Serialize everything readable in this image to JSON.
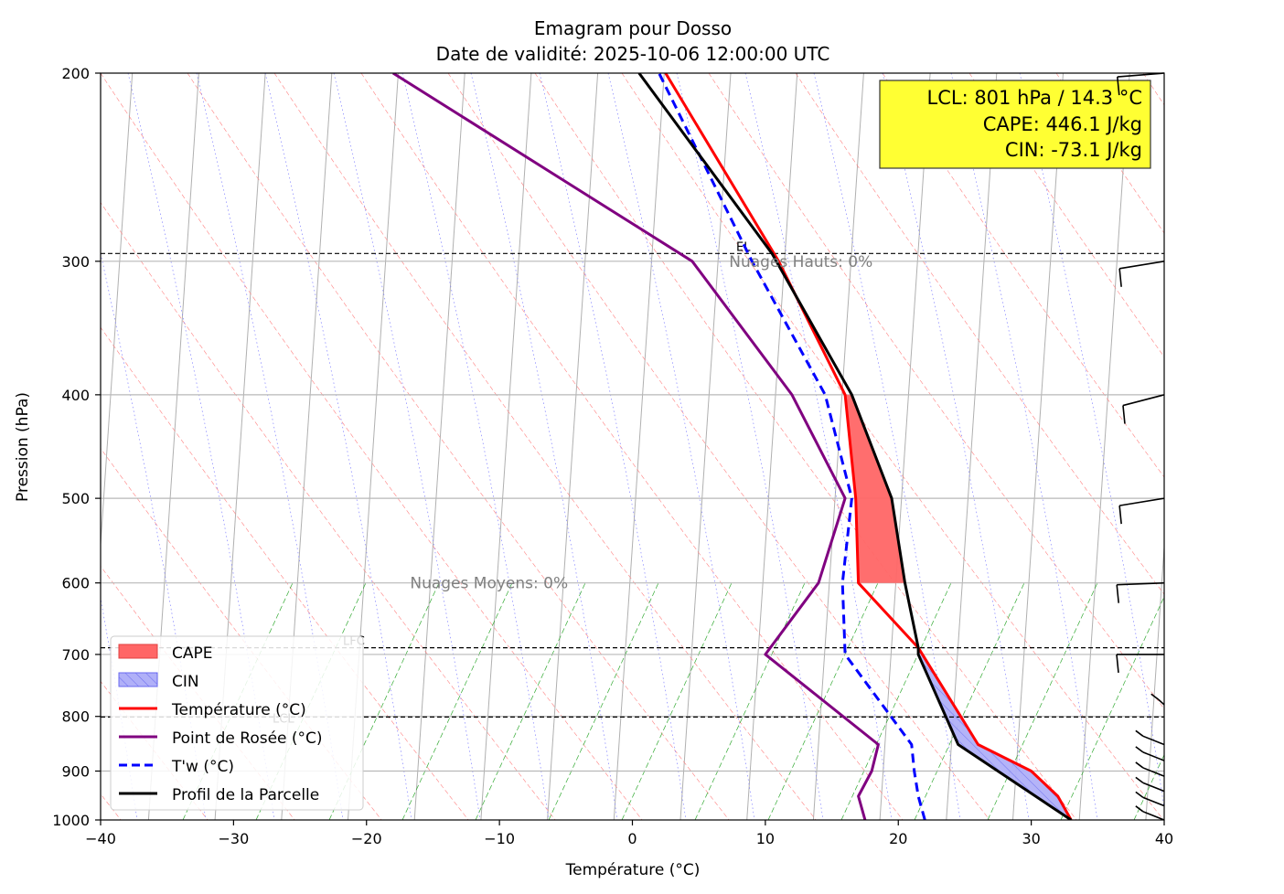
{
  "chart_data": {
    "type": "line",
    "chart_kind": "emagram",
    "title": "Emagram pour Dosso",
    "subtitle": "Date de validité: 2025-10-06 12:00:00 UTC",
    "xlabel": "Température (°C)",
    "ylabel": "Pression (hPa)",
    "xlim": [
      -40,
      40
    ],
    "ylim": [
      1000,
      200
    ],
    "x_ticks": [
      -40,
      -30,
      -20,
      -10,
      0,
      10,
      20,
      30,
      40
    ],
    "x_tick_labels": [
      "−40",
      "−30",
      "−20",
      "−10",
      "0",
      "10",
      "20",
      "30",
      "40"
    ],
    "y_ticks": [
      1000,
      900,
      800,
      700,
      600,
      500,
      400,
      300,
      200
    ],
    "y_tick_labels": [
      "1000",
      "900",
      "800",
      "700",
      "600",
      "500",
      "400",
      "300",
      "200"
    ],
    "legend": {
      "position": "lower-left",
      "entries": [
        {
          "key": "cape",
          "label": "CAPE"
        },
        {
          "key": "cin",
          "label": "CIN"
        },
        {
          "key": "temp",
          "label": "Température (°C)"
        },
        {
          "key": "dew",
          "label": "Point de Rosée (°C)"
        },
        {
          "key": "tw",
          "label": "T'w (°C)"
        },
        {
          "key": "parcel",
          "label": "Profil de la Parcelle"
        }
      ]
    },
    "colors": {
      "temperature": "#ff0000",
      "dewpoint": "#800080",
      "wetbulb": "#0000ff",
      "parcel": "#000000",
      "cape": "#ff6666",
      "cin": "#b0b0f8",
      "info_box": "#ffff33",
      "dry_adiabat": "#ff8080",
      "moist_adiabat": "#8080ff",
      "mixing_ratio": "#33aa33"
    },
    "info_box": {
      "lines": [
        "LCL: 801 hPa / 14.3 °C",
        "CAPE: 446.1 J/kg",
        "CIN: -73.1 J/kg"
      ]
    },
    "levels": [
      {
        "label": "EL",
        "pressure": 295
      },
      {
        "label": "LFC",
        "pressure": 690
      },
      {
        "label": "LCL",
        "pressure": 801
      }
    ],
    "cloud_labels": [
      {
        "label": "Nuages Hauts: 0%",
        "pressure": 300,
        "temperature": 7
      },
      {
        "label": "Nuages Moyens: 0%",
        "pressure": 600,
        "temperature": -17
      }
    ],
    "series": [
      {
        "name": "Température (°C)",
        "key": "temp",
        "points": [
          [
            33,
            1000
          ],
          [
            32,
            950
          ],
          [
            30,
            900
          ],
          [
            26,
            850
          ],
          [
            21.5,
            690
          ],
          [
            17,
            600
          ],
          [
            16.8,
            500
          ],
          [
            16,
            400
          ],
          [
            11,
            300
          ],
          [
            2.5,
            200
          ]
        ]
      },
      {
        "name": "Point de Rosée (°C)",
        "key": "dew",
        "points": [
          [
            17.5,
            1000
          ],
          [
            17,
            950
          ],
          [
            18,
            900
          ],
          [
            18.5,
            850
          ],
          [
            10,
            700
          ],
          [
            14,
            600
          ],
          [
            16,
            500
          ],
          [
            12,
            400
          ],
          [
            4.5,
            300
          ],
          [
            -18,
            200
          ]
        ]
      },
      {
        "name": "T'w (°C)",
        "key": "tw",
        "points": [
          [
            22,
            1000
          ],
          [
            21.5,
            950
          ],
          [
            21.2,
            900
          ],
          [
            21,
            850
          ],
          [
            16,
            700
          ],
          [
            15.8,
            600
          ],
          [
            16.5,
            500
          ],
          [
            14.5,
            400
          ],
          [
            9,
            300
          ],
          [
            2,
            200
          ]
        ]
      },
      {
        "name": "Profil de la Parcelle",
        "key": "parcel",
        "points": [
          [
            33,
            1000
          ],
          [
            24.5,
            850
          ],
          [
            21.5,
            700
          ],
          [
            21.5,
            690
          ],
          [
            20.5,
            600
          ],
          [
            19.5,
            500
          ],
          [
            16.5,
            400
          ],
          [
            10.5,
            295
          ],
          [
            0.5,
            200
          ]
        ]
      }
    ],
    "wind_barbs": [
      {
        "pressure": 200,
        "speed_kt": 10,
        "dir_deg": 260
      },
      {
        "pressure": 300,
        "speed_kt": 10,
        "dir_deg": 250
      },
      {
        "pressure": 400,
        "speed_kt": 10,
        "dir_deg": 240
      },
      {
        "pressure": 500,
        "speed_kt": 10,
        "dir_deg": 250
      },
      {
        "pressure": 600,
        "speed_kt": 10,
        "dir_deg": 265
      },
      {
        "pressure": 700,
        "speed_kt": 10,
        "dir_deg": 270
      },
      {
        "pressure": 780,
        "speed_kt": 5,
        "dir_deg": 190
      },
      {
        "pressure": 850,
        "speed_kt": 5,
        "dir_deg": 220
      },
      {
        "pressure": 880,
        "speed_kt": 5,
        "dir_deg": 220
      },
      {
        "pressure": 910,
        "speed_kt": 5,
        "dir_deg": 220
      },
      {
        "pressure": 940,
        "speed_kt": 5,
        "dir_deg": 220
      },
      {
        "pressure": 970,
        "speed_kt": 5,
        "dir_deg": 220
      },
      {
        "pressure": 1000,
        "speed_kt": 5,
        "dir_deg": 220
      }
    ]
  }
}
